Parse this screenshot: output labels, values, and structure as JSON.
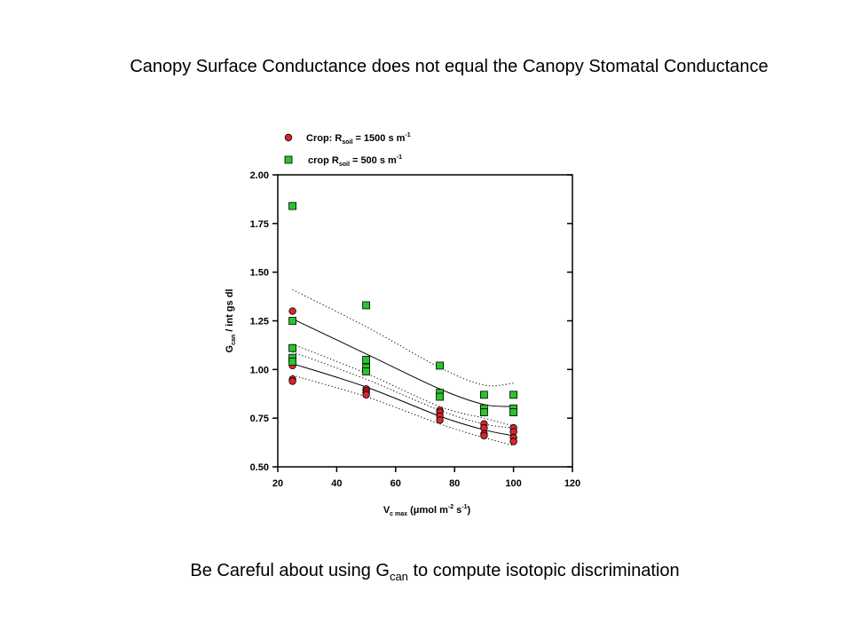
{
  "slide": {
    "title": "Canopy Surface Conductance does not equal the Canopy Stomatal Conductance",
    "footer_pre": "Be Careful about using G",
    "footer_sub": "can",
    "footer_post": " to compute isotopic discrimination"
  },
  "colors": {
    "series_red": "#d9262b",
    "series_green": "#27c42c",
    "outline": "#000000"
  },
  "chart_data": {
    "type": "scatter",
    "xlabel": {
      "main": "V",
      "sub": "c max",
      "unit": "(μmol m",
      "exp1": "-2",
      "mid": " s",
      "exp2": "-1",
      "end": ")"
    },
    "ylabel": {
      "main": "G",
      "sub": "can",
      "rest": "/ int gs dl"
    },
    "xlim": [
      20,
      120
    ],
    "ylim": [
      0.5,
      2.0
    ],
    "xticks": [
      "20",
      "40",
      "60",
      "80",
      "100",
      "120"
    ],
    "yticks": [
      "0.50",
      "0.75",
      "1.00",
      "1.25",
      "1.50",
      "1.75",
      "2.00"
    ],
    "legend": [
      {
        "pre": "Crop: R",
        "sub": "soil",
        "post": " = 1500 s m",
        "sup": "-1",
        "marker": "circle"
      },
      {
        "pre": " crop R",
        "sub": "soil",
        "post": " = 500 s m",
        "sup": "-1",
        "marker": "square"
      }
    ],
    "series": [
      {
        "marker": "circle",
        "points": [
          [
            25,
            1.3
          ],
          [
            25,
            1.02
          ],
          [
            25,
            0.95
          ],
          [
            25,
            0.94
          ],
          [
            50,
            0.99
          ],
          [
            50,
            0.9
          ],
          [
            50,
            0.89
          ],
          [
            50,
            0.88
          ],
          [
            50,
            0.87
          ],
          [
            75,
            0.79
          ],
          [
            75,
            0.78
          ],
          [
            75,
            0.76
          ],
          [
            75,
            0.74
          ],
          [
            90,
            0.72
          ],
          [
            90,
            0.7
          ],
          [
            90,
            0.67
          ],
          [
            90,
            0.66
          ],
          [
            100,
            0.7
          ],
          [
            100,
            0.68
          ],
          [
            100,
            0.65
          ],
          [
            100,
            0.63
          ]
        ],
        "fit": [
          [
            25,
            1.03
          ],
          [
            50,
            0.91
          ],
          [
            75,
            0.76
          ],
          [
            90,
            0.69
          ],
          [
            100,
            0.66
          ]
        ],
        "ci_upper": [
          [
            25,
            1.09
          ],
          [
            50,
            0.95
          ],
          [
            75,
            0.79
          ],
          [
            90,
            0.72
          ],
          [
            100,
            0.7
          ]
        ],
        "ci_lower": [
          [
            25,
            0.97
          ],
          [
            50,
            0.86
          ],
          [
            75,
            0.72
          ],
          [
            90,
            0.65
          ],
          [
            100,
            0.61
          ]
        ]
      },
      {
        "marker": "square",
        "points": [
          [
            25,
            1.84
          ],
          [
            25,
            1.25
          ],
          [
            25,
            1.11
          ],
          [
            25,
            1.06
          ],
          [
            25,
            1.04
          ],
          [
            50,
            1.33
          ],
          [
            50,
            1.05
          ],
          [
            50,
            1.01
          ],
          [
            50,
            0.99
          ],
          [
            75,
            1.02
          ],
          [
            75,
            0.88
          ],
          [
            75,
            0.86
          ],
          [
            90,
            0.87
          ],
          [
            90,
            0.8
          ],
          [
            90,
            0.78
          ],
          [
            100,
            0.87
          ],
          [
            100,
            0.8
          ],
          [
            100,
            0.78
          ]
        ],
        "fit": [
          [
            25,
            1.26
          ],
          [
            50,
            1.08
          ],
          [
            75,
            0.9
          ],
          [
            90,
            0.82
          ],
          [
            100,
            0.81
          ]
        ],
        "ci_upper": [
          [
            25,
            1.41
          ],
          [
            50,
            1.22
          ],
          [
            75,
            1.01
          ],
          [
            90,
            0.92
          ],
          [
            100,
            0.93
          ]
        ],
        "ci_lower": [
          [
            25,
            1.13
          ],
          [
            50,
            0.98
          ],
          [
            75,
            0.81
          ],
          [
            90,
            0.75
          ],
          [
            100,
            0.71
          ]
        ]
      }
    ]
  }
}
